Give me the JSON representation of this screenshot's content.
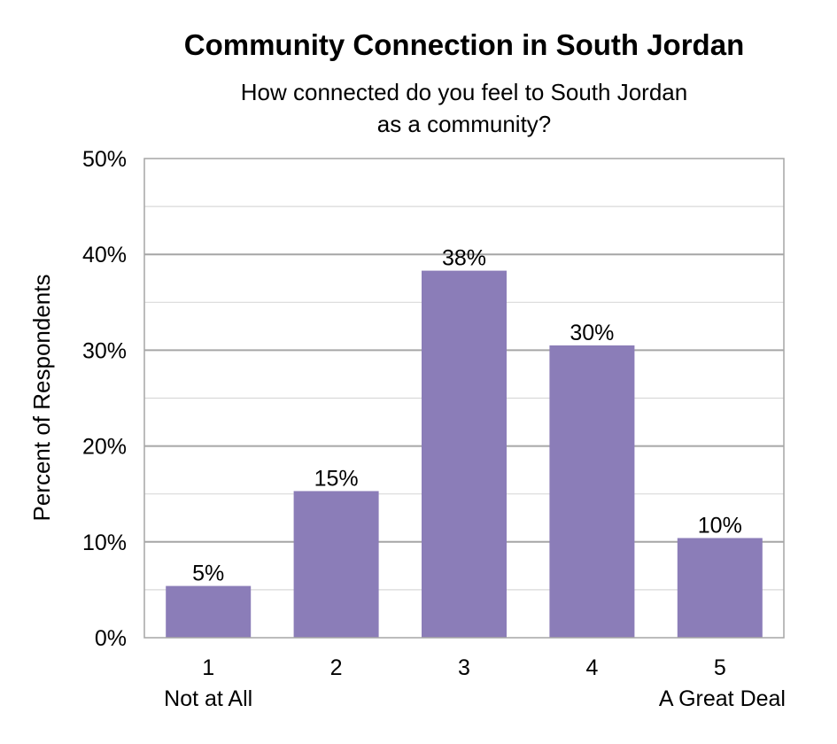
{
  "chart_data": {
    "type": "bar",
    "title": "Community Connection in South Jordan",
    "subtitle_lines": [
      "How connected do you feel to South Jordan",
      "as a community?"
    ],
    "ylabel": "Percent of Respondents",
    "xlabel": "",
    "categories": [
      "1",
      "2",
      "3",
      "4",
      "5"
    ],
    "category_sublabels": [
      "Not at All",
      "",
      "",
      "",
      "A Great Deal"
    ],
    "values": [
      5.4,
      15.3,
      38.3,
      30.5,
      10.4
    ],
    "data_labels": [
      "5%",
      "15%",
      "38%",
      "30%",
      "10%"
    ],
    "ylim": [
      0,
      50
    ],
    "y_ticks": [
      0,
      10,
      20,
      30,
      40,
      50
    ],
    "y_tick_labels": [
      "0%",
      "10%",
      "20%",
      "30%",
      "40%",
      "50%"
    ],
    "grid": true,
    "bar_color": "#8B7DB8",
    "gridline_major_color": "#A6A6A6",
    "gridline_minor_color": "#D9D9D9"
  }
}
